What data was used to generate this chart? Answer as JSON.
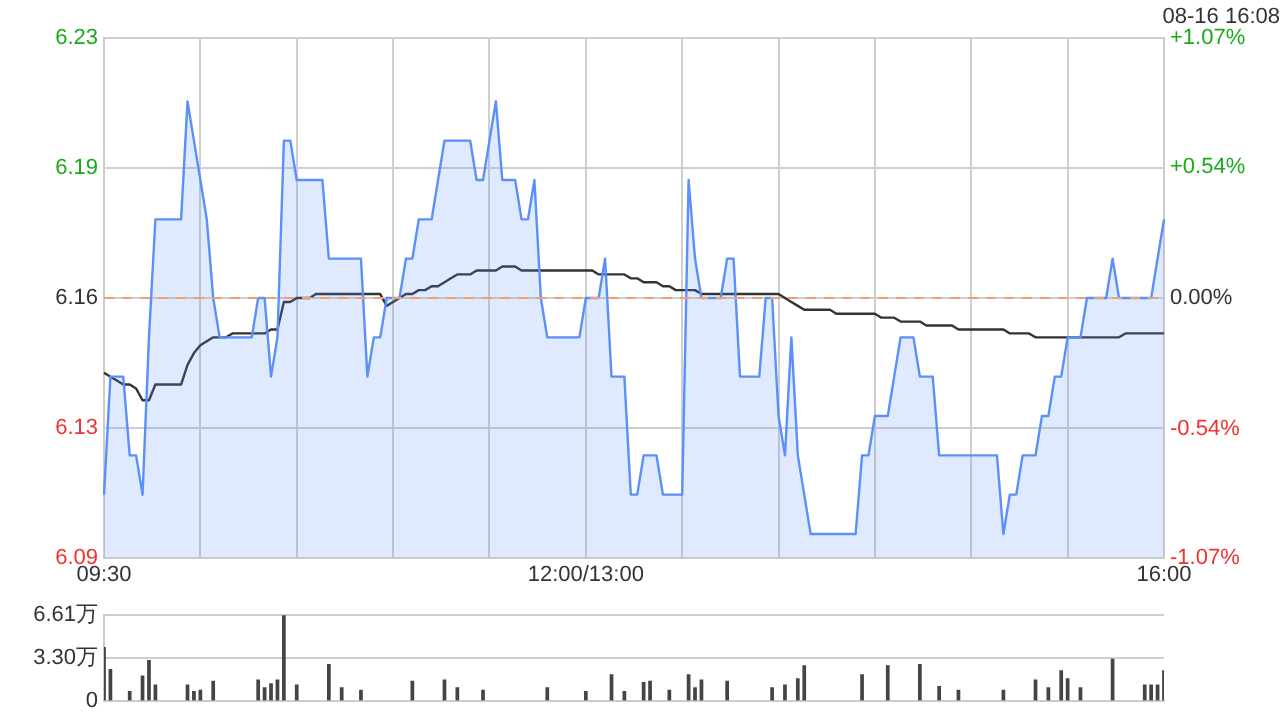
{
  "chart_data": [
    {
      "type": "area",
      "subtitle": "08-16 16:08",
      "categories": [
        "09:30",
        null,
        null,
        null,
        null,
        null,
        null,
        null,
        null,
        null,
        null,
        null,
        null,
        null,
        null,
        null,
        null,
        null,
        null,
        null,
        null,
        null,
        null,
        null,
        null,
        null,
        null,
        null,
        null,
        null,
        null,
        null,
        null,
        null,
        null,
        null,
        null,
        null,
        null,
        null,
        null,
        null,
        null,
        null,
        null,
        null,
        null,
        null,
        null,
        null,
        null,
        null,
        null,
        null,
        null,
        null,
        null,
        null,
        null,
        null,
        null,
        null,
        null,
        null,
        null,
        null,
        null,
        null,
        null,
        null,
        null,
        null,
        null,
        null,
        null,
        "12:00/13:00",
        null,
        null,
        null,
        null,
        null,
        null,
        null,
        null,
        null,
        null,
        null,
        null,
        null,
        null,
        null,
        null,
        null,
        null,
        null,
        null,
        null,
        null,
        null,
        null,
        null,
        null,
        null,
        null,
        null,
        null,
        null,
        null,
        null,
        null,
        null,
        null,
        null,
        null,
        null,
        null,
        null,
        null,
        null,
        null,
        null,
        null,
        null,
        null,
        null,
        null,
        null,
        null,
        null,
        null,
        null,
        null,
        null,
        null,
        null,
        null,
        null,
        null,
        null,
        null,
        null,
        null,
        null,
        null,
        null,
        null,
        null,
        null,
        null,
        null,
        null,
        null,
        null,
        null,
        null,
        null,
        null,
        null,
        null,
        null,
        null,
        null,
        null,
        null,
        null,
        "16:00"
      ],
      "series": [
        {
          "type": "area",
          "color": "#5b8ff9",
          "values": [
            6.11,
            6.14,
            6.14,
            6.14,
            6.12,
            6.12,
            6.11,
            6.15,
            6.18,
            6.18,
            6.18,
            6.18,
            6.18,
            6.21,
            6.2,
            6.19,
            6.18,
            6.16,
            6.15,
            6.15,
            6.15,
            6.15,
            6.15,
            6.15,
            6.16,
            6.16,
            6.14,
            6.15,
            6.2,
            6.2,
            6.19,
            6.19,
            6.19,
            6.19,
            6.19,
            6.17,
            6.17,
            6.17,
            6.17,
            6.17,
            6.17,
            6.14,
            6.15,
            6.15,
            6.16,
            6.16,
            6.16,
            6.17,
            6.17,
            6.18,
            6.18,
            6.18,
            6.19,
            6.2,
            6.2,
            6.2,
            6.2,
            6.2,
            6.19,
            6.19,
            6.2,
            6.21,
            6.19,
            6.19,
            6.19,
            6.18,
            6.18,
            6.19,
            6.16,
            6.15,
            6.15,
            6.15,
            6.15,
            6.15,
            6.15,
            6.16,
            6.16,
            6.16,
            6.17,
            6.14,
            6.14,
            6.14,
            6.11,
            6.11,
            6.12,
            6.12,
            6.12,
            6.11,
            6.11,
            6.11,
            6.11,
            6.19,
            6.17,
            6.16,
            6.16,
            6.16,
            6.16,
            6.17,
            6.17,
            6.14,
            6.14,
            6.14,
            6.14,
            6.16,
            6.16,
            6.13,
            6.12,
            6.15,
            6.12,
            6.11,
            6.1,
            6.1,
            6.1,
            6.1,
            6.1,
            6.1,
            6.1,
            6.1,
            6.12,
            6.12,
            6.13,
            6.13,
            6.13,
            6.14,
            6.15,
            6.15,
            6.15,
            6.14,
            6.14,
            6.14,
            6.12,
            6.12,
            6.12,
            6.12,
            6.12,
            6.12,
            6.12,
            6.12,
            6.12,
            6.12,
            6.1,
            6.11,
            6.11,
            6.12,
            6.12,
            6.12,
            6.13,
            6.13,
            6.14,
            6.14,
            6.15,
            6.15,
            6.15,
            6.16,
            6.16,
            6.16,
            6.16,
            6.17,
            6.16,
            6.16,
            6.16,
            6.16,
            6.16,
            6.16,
            6.17,
            6.18
          ]
        },
        {
          "type": "line",
          "color": "#333333",
          "values": [
            6.141,
            6.14,
            6.139,
            6.138,
            6.138,
            6.137,
            6.134,
            6.134,
            6.138,
            6.138,
            6.138,
            6.138,
            6.138,
            6.143,
            6.146,
            6.148,
            6.149,
            6.15,
            6.15,
            6.15,
            6.151,
            6.151,
            6.151,
            6.151,
            6.151,
            6.151,
            6.152,
            6.152,
            6.159,
            6.159,
            6.16,
            6.16,
            6.16,
            6.161,
            6.161,
            6.161,
            6.161,
            6.161,
            6.161,
            6.161,
            6.161,
            6.161,
            6.161,
            6.161,
            6.158,
            6.159,
            6.16,
            6.161,
            6.161,
            6.162,
            6.162,
            6.163,
            6.163,
            6.164,
            6.165,
            6.166,
            6.166,
            6.166,
            6.167,
            6.167,
            6.167,
            6.167,
            6.168,
            6.168,
            6.168,
            6.167,
            6.167,
            6.167,
            6.167,
            6.167,
            6.167,
            6.167,
            6.167,
            6.167,
            6.167,
            6.167,
            6.167,
            6.166,
            6.166,
            6.166,
            6.166,
            6.166,
            6.165,
            6.165,
            6.164,
            6.164,
            6.164,
            6.163,
            6.163,
            6.162,
            6.162,
            6.162,
            6.162,
            6.161,
            6.161,
            6.161,
            6.161,
            6.161,
            6.161,
            6.161,
            6.161,
            6.161,
            6.161,
            6.161,
            6.161,
            6.161,
            6.16,
            6.159,
            6.158,
            6.157,
            6.157,
            6.157,
            6.157,
            6.157,
            6.156,
            6.156,
            6.156,
            6.156,
            6.156,
            6.156,
            6.156,
            6.155,
            6.155,
            6.155,
            6.154,
            6.154,
            6.154,
            6.154,
            6.153,
            6.153,
            6.153,
            6.153,
            6.153,
            6.152,
            6.152,
            6.152,
            6.152,
            6.152,
            6.152,
            6.152,
            6.152,
            6.151,
            6.151,
            6.151,
            6.151,
            6.15,
            6.15,
            6.15,
            6.15,
            6.15,
            6.15,
            6.15,
            6.15,
            6.15,
            6.15,
            6.15,
            6.15,
            6.15,
            6.15,
            6.151,
            6.151,
            6.151,
            6.151,
            6.151,
            6.151,
            6.151
          ]
        }
      ],
      "ylim": [
        6.094,
        6.226
      ],
      "yticks": [
        {
          "value": 6.094,
          "label": "6.09"
        },
        {
          "value": 6.127,
          "label": "6.13"
        },
        {
          "value": 6.16,
          "label": "6.16"
        },
        {
          "value": 6.193,
          "label": "6.19"
        },
        {
          "value": 6.226,
          "label": "6.23"
        }
      ],
      "y2lim": [
        -1.07,
        1.07
      ],
      "y2ticks": [
        {
          "value": -1.07,
          "label": "-1.07%"
        },
        {
          "value": -0.54,
          "label": "-0.54%"
        },
        {
          "value": 0,
          "label": "0.00%"
        },
        {
          "value": 0.54,
          "label": "+0.54%"
        },
        {
          "value": 1.07,
          "label": "+1.07%"
        }
      ],
      "ref_lines": [
        {
          "axis": "y",
          "value": 6.16,
          "color": "#f0a070",
          "line_style": "dashed"
        }
      ],
      "grid": true,
      "marker": "none"
    },
    {
      "type": "bar",
      "color": "#444444",
      "categories": [
        null,
        null,
        null,
        null,
        null,
        null,
        null,
        null,
        null,
        null,
        null,
        null,
        null,
        null,
        null,
        null,
        null,
        null,
        null,
        null,
        null,
        null,
        null,
        null,
        null,
        null,
        null,
        null,
        null,
        null,
        null,
        null,
        null,
        null,
        null,
        null,
        null,
        null,
        null,
        null,
        null,
        null,
        null,
        null,
        null,
        null,
        null,
        null,
        null,
        null,
        null,
        null,
        null,
        null,
        null,
        null,
        null,
        null,
        null,
        null,
        null,
        null,
        null,
        null,
        null,
        null,
        null,
        null,
        null,
        null,
        null,
        null,
        null,
        null,
        null,
        null,
        null,
        null,
        null,
        null,
        null,
        null,
        null,
        null,
        null,
        null,
        null,
        null,
        null,
        null,
        null,
        null,
        null,
        null,
        null,
        null,
        null,
        null,
        null,
        null,
        null,
        null,
        null,
        null,
        null,
        null,
        null,
        null,
        null,
        null,
        null,
        null,
        null,
        null,
        null,
        null,
        null,
        null,
        null,
        null,
        null,
        null,
        null,
        null,
        null,
        null,
        null,
        null,
        null,
        null,
        null,
        null,
        null,
        null,
        null,
        null,
        null,
        null,
        null,
        null,
        null,
        null,
        null,
        null,
        null,
        null,
        null,
        null,
        null,
        null,
        null,
        null,
        null,
        null,
        null,
        null,
        null,
        null,
        null,
        null,
        null,
        null,
        null,
        null,
        null,
        null
      ],
      "values": [
        4.1,
        2.4,
        null,
        null,
        0.7,
        null,
        1.9,
        3.1,
        1.2,
        null,
        null,
        null,
        null,
        1.2,
        0.7,
        0.8,
        null,
        1.5,
        null,
        null,
        null,
        null,
        null,
        null,
        1.6,
        1.0,
        1.3,
        1.6,
        6.6,
        null,
        1.2,
        null,
        null,
        null,
        null,
        2.8,
        null,
        1.0,
        null,
        null,
        0.8,
        null,
        null,
        null,
        null,
        null,
        null,
        null,
        1.5,
        null,
        null,
        null,
        null,
        1.6,
        null,
        1.0,
        null,
        null,
        null,
        0.8,
        null,
        null,
        null,
        null,
        null,
        null,
        null,
        null,
        null,
        1.0,
        null,
        null,
        null,
        null,
        null,
        0.7,
        null,
        null,
        null,
        2.0,
        null,
        0.7,
        null,
        null,
        1.4,
        1.5,
        null,
        null,
        0.8,
        null,
        null,
        2.0,
        1.0,
        1.6,
        null,
        null,
        null,
        1.5,
        null,
        null,
        null,
        null,
        null,
        null,
        1.0,
        null,
        1.2,
        null,
        1.7,
        2.7,
        null,
        null,
        null,
        null,
        null,
        null,
        null,
        null,
        2.0,
        null,
        null,
        null,
        2.7,
        null,
        null,
        null,
        null,
        2.8,
        null,
        null,
        1.1,
        null,
        null,
        0.8,
        null,
        null,
        null,
        null,
        null,
        null,
        0.8,
        null,
        null,
        null,
        null,
        1.6,
        null,
        1.0,
        null,
        2.3,
        1.7,
        null,
        1.0,
        null,
        null,
        null,
        null,
        3.2,
        null,
        null,
        null,
        null,
        1.2,
        1.2,
        1.2,
        2.3
      ],
      "ylim": [
        0,
        6.61
      ],
      "yticks": [
        0,
        {
          "value": 3.3,
          "label": "3.30万"
        },
        {
          "value": 6.61,
          "label": "6.61万"
        }
      ],
      "tick_labels": "y",
      "grid": "y"
    }
  ]
}
